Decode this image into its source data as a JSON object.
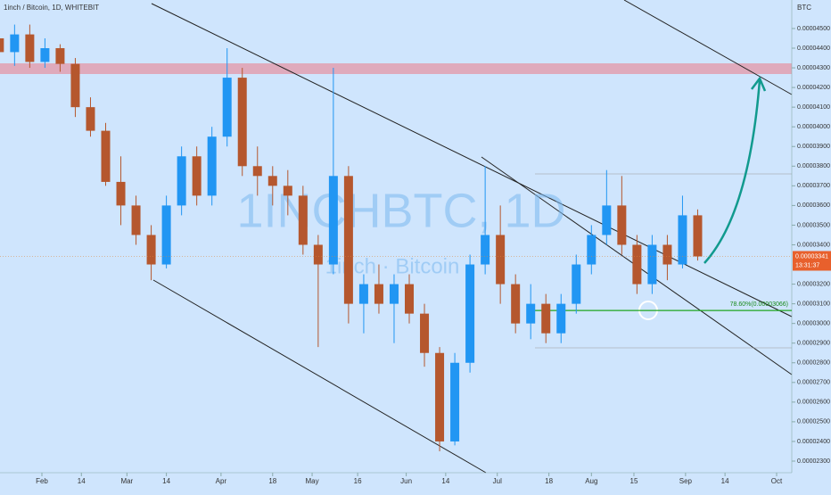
{
  "chart_data": {
    "type": "candlestick",
    "title": "1inch / Bitcoin, 1D, WHITEBIT",
    "watermark": "1INCHBTC, 1D",
    "watermark_subtitle": "1inch · Bitcoin",
    "y_axis_label": "BTC",
    "up_color": "#2196f3",
    "down_color": "#b5572e",
    "x": [
      "Jan 18",
      "Jan 23",
      "Jan 28",
      "Feb 2",
      "Feb 7",
      "Feb 12",
      "Feb 17",
      "Feb 22",
      "Feb 27",
      "Mar 4",
      "Mar 9",
      "Mar 14",
      "Mar 19",
      "Mar 24",
      "Mar 29",
      "Apr 3",
      "Apr 8",
      "Apr 13",
      "Apr 18",
      "Apr 23",
      "Apr 28",
      "May 3",
      "May 8",
      "May 13",
      "May 18",
      "May 23",
      "May 28",
      "Jun 2",
      "Jun 7",
      "Jun 12",
      "Jun 17",
      "Jun 22",
      "Jun 27",
      "Jul 2",
      "Jul 7",
      "Jul 12",
      "Jul 17",
      "Jul 22",
      "Jul 27",
      "Aug 1",
      "Aug 6",
      "Aug 11",
      "Aug 16",
      "Aug 21",
      "Aug 26",
      "Aug 31",
      "Sep 5"
    ],
    "open": [
      4.45e-05,
      4.38e-05,
      4.47e-05,
      4.33e-05,
      4.4e-05,
      4.32e-05,
      4.1e-05,
      3.98e-05,
      3.72e-05,
      3.6e-05,
      3.45e-05,
      3.3e-05,
      3.6e-05,
      3.85e-05,
      3.65e-05,
      3.95e-05,
      4.25e-05,
      3.8e-05,
      3.75e-05,
      3.7e-05,
      3.65e-05,
      3.4e-05,
      3.3e-05,
      3.75e-05,
      3.1e-05,
      3.2e-05,
      3.1e-05,
      3.2e-05,
      3.05e-05,
      2.85e-05,
      2.4e-05,
      2.8e-05,
      3.3e-05,
      3.45e-05,
      3.2e-05,
      3e-05,
      3.1e-05,
      2.95e-05,
      3.1e-05,
      3.3e-05,
      3.45e-05,
      3.6e-05,
      3.4e-05,
      3.2e-05,
      3.4e-05,
      3.3e-05,
      3.55e-05
    ],
    "high": [
      4.56e-05,
      4.52e-05,
      4.52e-05,
      4.45e-05,
      4.42e-05,
      4.35e-05,
      4.15e-05,
      4.02e-05,
      3.85e-05,
      3.65e-05,
      3.5e-05,
      3.65e-05,
      3.9e-05,
      3.9e-05,
      4e-05,
      4.4e-05,
      4.3e-05,
      3.9e-05,
      3.8e-05,
      3.78e-05,
      3.7e-05,
      3.45e-05,
      4.3e-05,
      3.8e-05,
      3.25e-05,
      3.3e-05,
      3.25e-05,
      3.25e-05,
      3.1e-05,
      2.88e-05,
      2.85e-05,
      3.35e-05,
      3.8e-05,
      3.6e-05,
      3.25e-05,
      3.2e-05,
      3.15e-05,
      3.15e-05,
      3.35e-05,
      3.5e-05,
      3.78e-05,
      3.75e-05,
      3.45e-05,
      3.45e-05,
      3.45e-05,
      3.65e-05,
      3.58e-05
    ],
    "low": [
      4.3e-05,
      4.31e-05,
      4.3e-05,
      4.3e-05,
      4.28e-05,
      4.05e-05,
      3.95e-05,
      3.7e-05,
      3.5e-05,
      3.4e-05,
      3.22e-05,
      3.28e-05,
      3.55e-05,
      3.6e-05,
      3.6e-05,
      3.9e-05,
      3.75e-05,
      3.65e-05,
      3.6e-05,
      3.55e-05,
      3.35e-05,
      2.88e-05,
      3.25e-05,
      3e-05,
      2.95e-05,
      3.05e-05,
      2.9e-05,
      3e-05,
      2.78e-05,
      2.35e-05,
      2.38e-05,
      2.75e-05,
      3.25e-05,
      3.1e-05,
      2.95e-05,
      2.92e-05,
      2.9e-05,
      2.9e-05,
      3.05e-05,
      3.25e-05,
      3.4e-05,
      3.35e-05,
      3.15e-05,
      3.15e-05,
      3.22e-05,
      3.28e-05,
      3.32e-05
    ],
    "close": [
      4.38e-05,
      4.47e-05,
      4.33e-05,
      4.4e-05,
      4.32e-05,
      4.1e-05,
      3.98e-05,
      3.72e-05,
      3.6e-05,
      3.45e-05,
      3.3e-05,
      3.6e-05,
      3.85e-05,
      3.65e-05,
      3.95e-05,
      4.25e-05,
      3.8e-05,
      3.75e-05,
      3.7e-05,
      3.65e-05,
      3.4e-05,
      3.3e-05,
      3.75e-05,
      3.1e-05,
      3.2e-05,
      3.1e-05,
      3.2e-05,
      3.05e-05,
      2.85e-05,
      2.4e-05,
      2.8e-05,
      3.3e-05,
      3.45e-05,
      3.2e-05,
      3e-05,
      3.1e-05,
      2.95e-05,
      3.1e-05,
      3.3e-05,
      3.45e-05,
      3.6e-05,
      3.4e-05,
      3.2e-05,
      3.4e-05,
      3.3e-05,
      3.55e-05,
      3.341e-05
    ],
    "ylim": [
      2.241e-05,
      4.645e-05
    ],
    "yticks": [
      {
        "value": 2.3e-05,
        "label": "0.00002300"
      },
      {
        "value": 2.4e-05,
        "label": "0.00002400"
      },
      {
        "value": 2.5e-05,
        "label": "0.00002500"
      },
      {
        "value": 2.6e-05,
        "label": "0.00002600"
      },
      {
        "value": 2.7e-05,
        "label": "0.00002700"
      },
      {
        "value": 2.8e-05,
        "label": "0.00002800"
      },
      {
        "value": 2.9e-05,
        "label": "0.00002900"
      },
      {
        "value": 3e-05,
        "label": "0.00003000"
      },
      {
        "value": 3.1e-05,
        "label": "0.00003100"
      },
      {
        "value": 3.2e-05,
        "label": "0.00003200"
      },
      {
        "value": 3.4e-05,
        "label": "0.00003400"
      },
      {
        "value": 3.5e-05,
        "label": "0.00003500"
      },
      {
        "value": 3.6e-05,
        "label": "0.00003600"
      },
      {
        "value": 3.7e-05,
        "label": "0.00003700"
      },
      {
        "value": 3.8e-05,
        "label": "0.00003800"
      },
      {
        "value": 3.9e-05,
        "label": "0.00003900"
      },
      {
        "value": 4e-05,
        "label": "0.00004000"
      },
      {
        "value": 4.1e-05,
        "label": "0.00004100"
      },
      {
        "value": 4.2e-05,
        "label": "0.00004200"
      },
      {
        "value": 4.3e-05,
        "label": "0.00004300"
      },
      {
        "value": 4.4e-05,
        "label": "0.00004400"
      },
      {
        "value": 4.5e-05,
        "label": "0.00004500"
      }
    ],
    "xticks": [
      {
        "value": "Feb 1",
        "label": "Feb"
      },
      {
        "value": "Feb 14",
        "label": "14"
      },
      {
        "value": "Mar 1",
        "label": "Mar"
      },
      {
        "value": "Mar 14",
        "label": "14"
      },
      {
        "value": "Apr 1",
        "label": "Apr"
      },
      {
        "value": "Apr 18",
        "label": "18"
      },
      {
        "value": "May 1",
        "label": "May"
      },
      {
        "value": "May 16",
        "label": "16"
      },
      {
        "value": "Jun 1",
        "label": "Jun"
      },
      {
        "value": "Jun 14",
        "label": "14"
      },
      {
        "value": "Jul 1",
        "label": "Jul"
      },
      {
        "value": "Jul 18",
        "label": "18"
      },
      {
        "value": "Aug 1",
        "label": "Aug"
      },
      {
        "value": "Aug 15",
        "label": "15"
      },
      {
        "value": "Sep 1",
        "label": "Sep"
      },
      {
        "value": "Sep 14",
        "label": "14"
      },
      {
        "value": "Oct 1",
        "label": "Oct"
      }
    ],
    "last_price": {
      "value": 3.341e-05,
      "label": "0.00003341"
    },
    "countdown": "13:31:37",
    "fib_level": {
      "value": 3.066e-05,
      "label": "78.60%(0.00003066)",
      "color": "#1fa51f"
    }
  }
}
